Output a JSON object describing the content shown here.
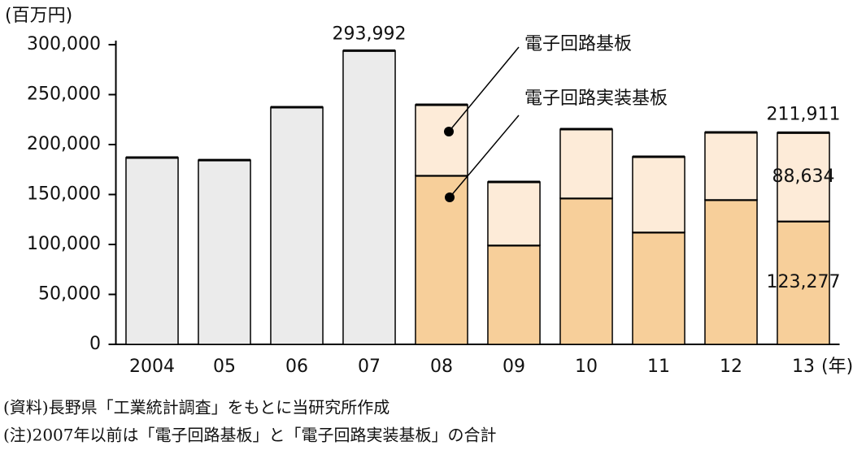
{
  "chart_data": {
    "type": "stacked_bar",
    "y_unit_label": "(百万円)",
    "x_unit_label": "(年)",
    "categories": [
      "2004",
      "05",
      "06",
      "07",
      "08",
      "09",
      "10",
      "11",
      "12",
      "13"
    ],
    "series": [
      {
        "color": "#ebebeb",
        "values": [
          187000,
          184500,
          237400,
          293992,
          null,
          null,
          null,
          null,
          null,
          null
        ],
        "value_labels": [
          null,
          null,
          null,
          "293,992",
          null,
          null,
          null,
          null,
          null,
          null
        ]
      },
      {
        "name": "電子回路実装基板",
        "color": "#f7cf9a",
        "values": [
          null,
          null,
          null,
          null,
          169000,
          99200,
          146300,
          112200,
          144700,
          123277
        ],
        "value_labels": [
          null,
          null,
          null,
          null,
          null,
          null,
          null,
          null,
          null,
          "123,277"
        ]
      },
      {
        "name": "電子回路基板",
        "color": "#fdebd8",
        "values": [
          null,
          null,
          null,
          null,
          70800,
          63400,
          69100,
          75600,
          67500,
          88634
        ],
        "value_labels": [
          null,
          null,
          null,
          null,
          null,
          null,
          null,
          null,
          null,
          "88,634"
        ]
      }
    ],
    "total_label": "211,911",
    "ylim": [
      0,
      300000
    ],
    "yticks": [
      0,
      {
        "value": 50000,
        "label": "50,000"
      },
      {
        "value": 100000,
        "label": "100,000"
      },
      {
        "value": 150000,
        "label": "150,000"
      },
      {
        "value": 200000,
        "label": "200,000"
      },
      {
        "value": 250000,
        "label": "250,000"
      },
      {
        "value": 300000,
        "label": "300,000"
      }
    ],
    "notes": [
      "(資料)長野県「工業統計調査」をもとに当研究所作成",
      "(注)2007年以前は「電子回路基板」と「電子回路実装基板」の合計"
    ]
  }
}
